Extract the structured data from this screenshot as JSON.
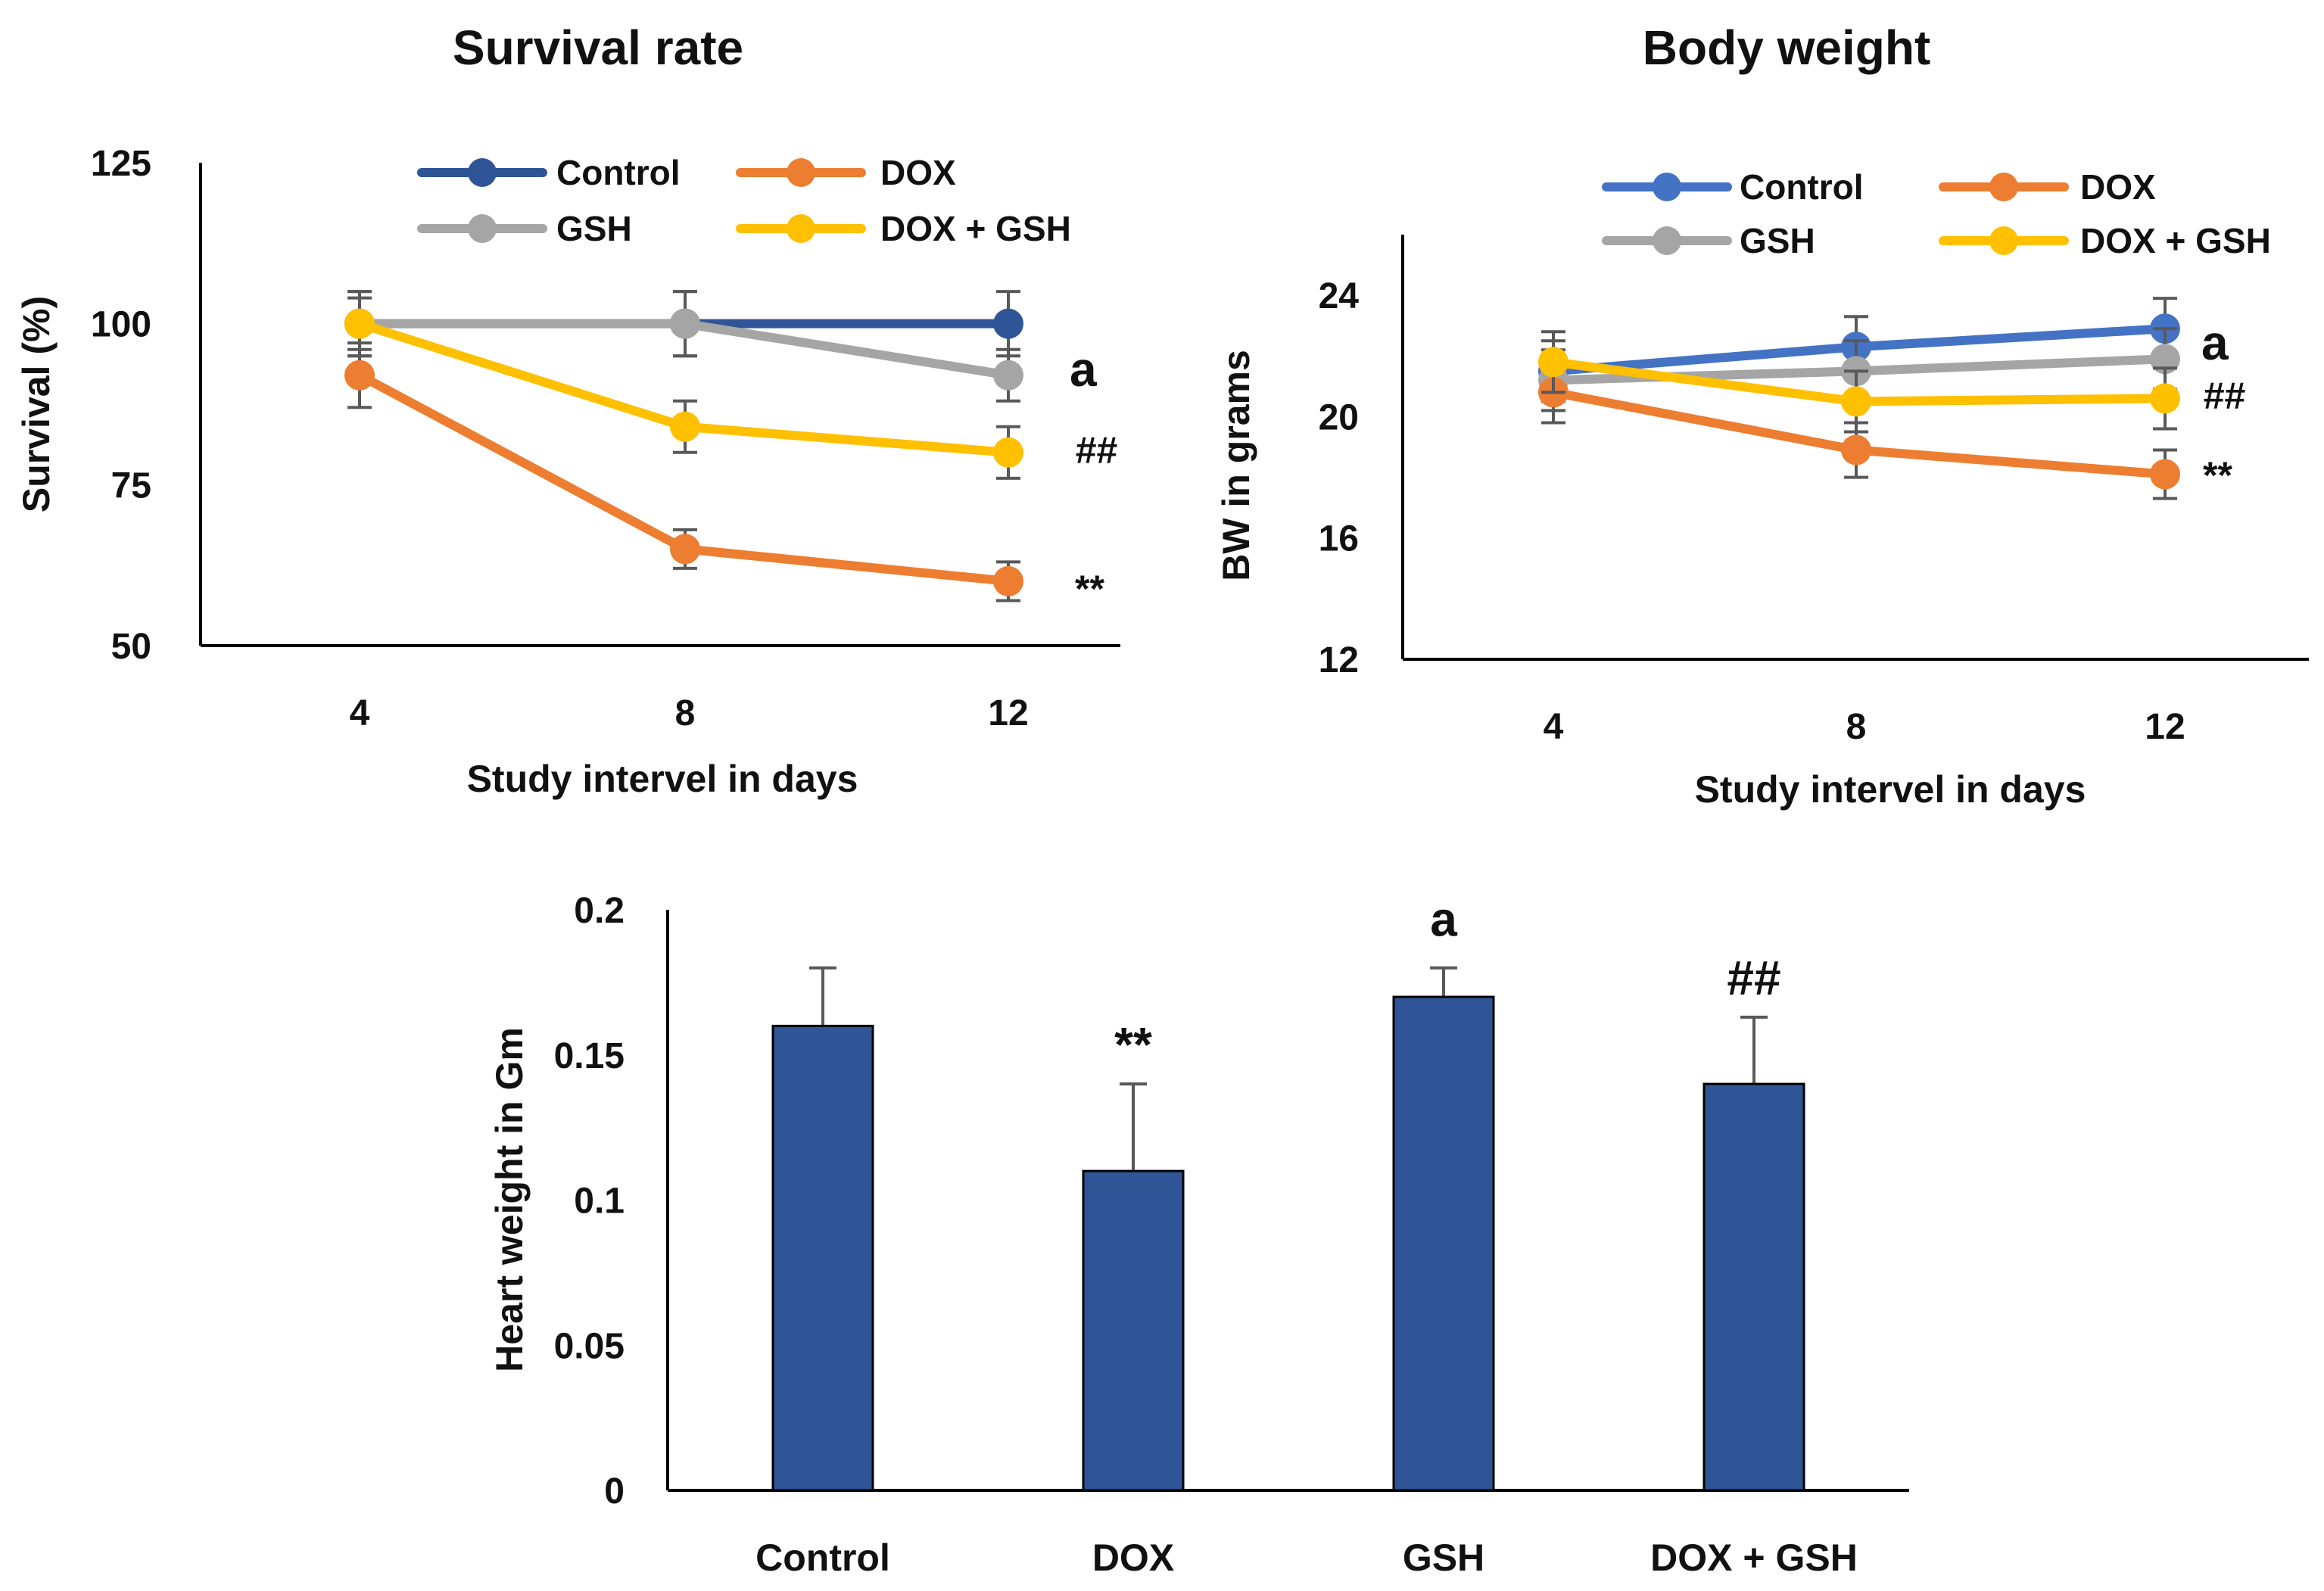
{
  "chart_data": [
    {
      "type": "line",
      "title": "Survival rate",
      "xlabel": "Study intervel in days",
      "ylabel": "Survival (%)",
      "x": [
        4,
        8,
        12
      ],
      "x_tick_labels": [
        "4",
        "8",
        "12"
      ],
      "ylim": [
        50,
        125
      ],
      "y_ticks": [
        50,
        75,
        100,
        125
      ],
      "y_tick_labels": [
        "50",
        "75",
        "100",
        "125"
      ],
      "grid": false,
      "legend_position": "top",
      "series": [
        {
          "name": "Control",
          "color": "#2F5597",
          "values": [
            100,
            100,
            100
          ],
          "errors": [
            5,
            5,
            5
          ]
        },
        {
          "name": "DOX",
          "color": "#ED7D31",
          "values": [
            92,
            65,
            60
          ],
          "errors": [
            5,
            3,
            3
          ]
        },
        {
          "name": "GSH",
          "color": "#A5A5A5",
          "values": [
            100,
            100,
            92
          ],
          "errors": [
            5,
            5,
            4
          ]
        },
        {
          "name": "DOX + GSH",
          "color": "#FFC000",
          "values": [
            100,
            84,
            80
          ],
          "errors": [
            4,
            4,
            4
          ]
        }
      ],
      "annotations": [
        {
          "text": "a",
          "series": "GSH",
          "x": 12
        },
        {
          "text": "##",
          "series": "DOX + GSH",
          "x": 12
        },
        {
          "text": "**",
          "series": "DOX",
          "x": 12
        }
      ]
    },
    {
      "type": "line",
      "title": "Body weight",
      "xlabel": "Study intervel in days",
      "ylabel": "BW in grams",
      "x": [
        4,
        8,
        12
      ],
      "x_tick_labels": [
        "4",
        "8",
        "12"
      ],
      "ylim": [
        12,
        26
      ],
      "y_ticks": [
        12,
        16,
        20,
        24
      ],
      "y_tick_labels": [
        "12",
        "16",
        "20",
        "24"
      ],
      "grid": false,
      "legend_position": "top",
      "series": [
        {
          "name": "Control",
          "color": "#4472C4",
          "values": [
            21.5,
            22.3,
            22.9
          ],
          "errors": [
            1.0,
            1.0,
            1.0
          ]
        },
        {
          "name": "DOX",
          "color": "#ED7D31",
          "values": [
            20.8,
            18.9,
            18.1
          ],
          "errors": [
            1.0,
            0.9,
            0.8
          ]
        },
        {
          "name": "GSH",
          "color": "#A5A5A5",
          "values": [
            21.2,
            21.5,
            21.9
          ],
          "errors": [
            1.0,
            1.0,
            1.0
          ]
        },
        {
          "name": "DOX + GSH",
          "color": "#FFC000",
          "values": [
            21.8,
            20.5,
            20.6
          ],
          "errors": [
            1.0,
            1.0,
            1.0
          ]
        }
      ],
      "annotations": [
        {
          "text": "a",
          "series": "GSH",
          "x": 12
        },
        {
          "text": "##",
          "series": "DOX + GSH",
          "x": 12
        },
        {
          "text": "**",
          "series": "DOX",
          "x": 12
        }
      ]
    },
    {
      "type": "bar",
      "title": "",
      "xlabel": "",
      "ylabel": "Heart weight in Gm",
      "categories": [
        "Control",
        "DOX",
        "GSH",
        "DOX + GSH"
      ],
      "values": [
        0.16,
        0.11,
        0.17,
        0.14
      ],
      "errors": [
        0.02,
        0.03,
        0.01,
        0.023
      ],
      "color": "#2F5597",
      "ylim": [
        0,
        0.2
      ],
      "y_ticks": [
        0,
        0.05,
        0.1,
        0.15,
        0.2
      ],
      "y_tick_labels": [
        "0",
        "0.05",
        "0.1",
        "0.15",
        "0.2"
      ],
      "grid": false,
      "annotations": [
        "",
        "**",
        "a",
        "##"
      ]
    }
  ]
}
